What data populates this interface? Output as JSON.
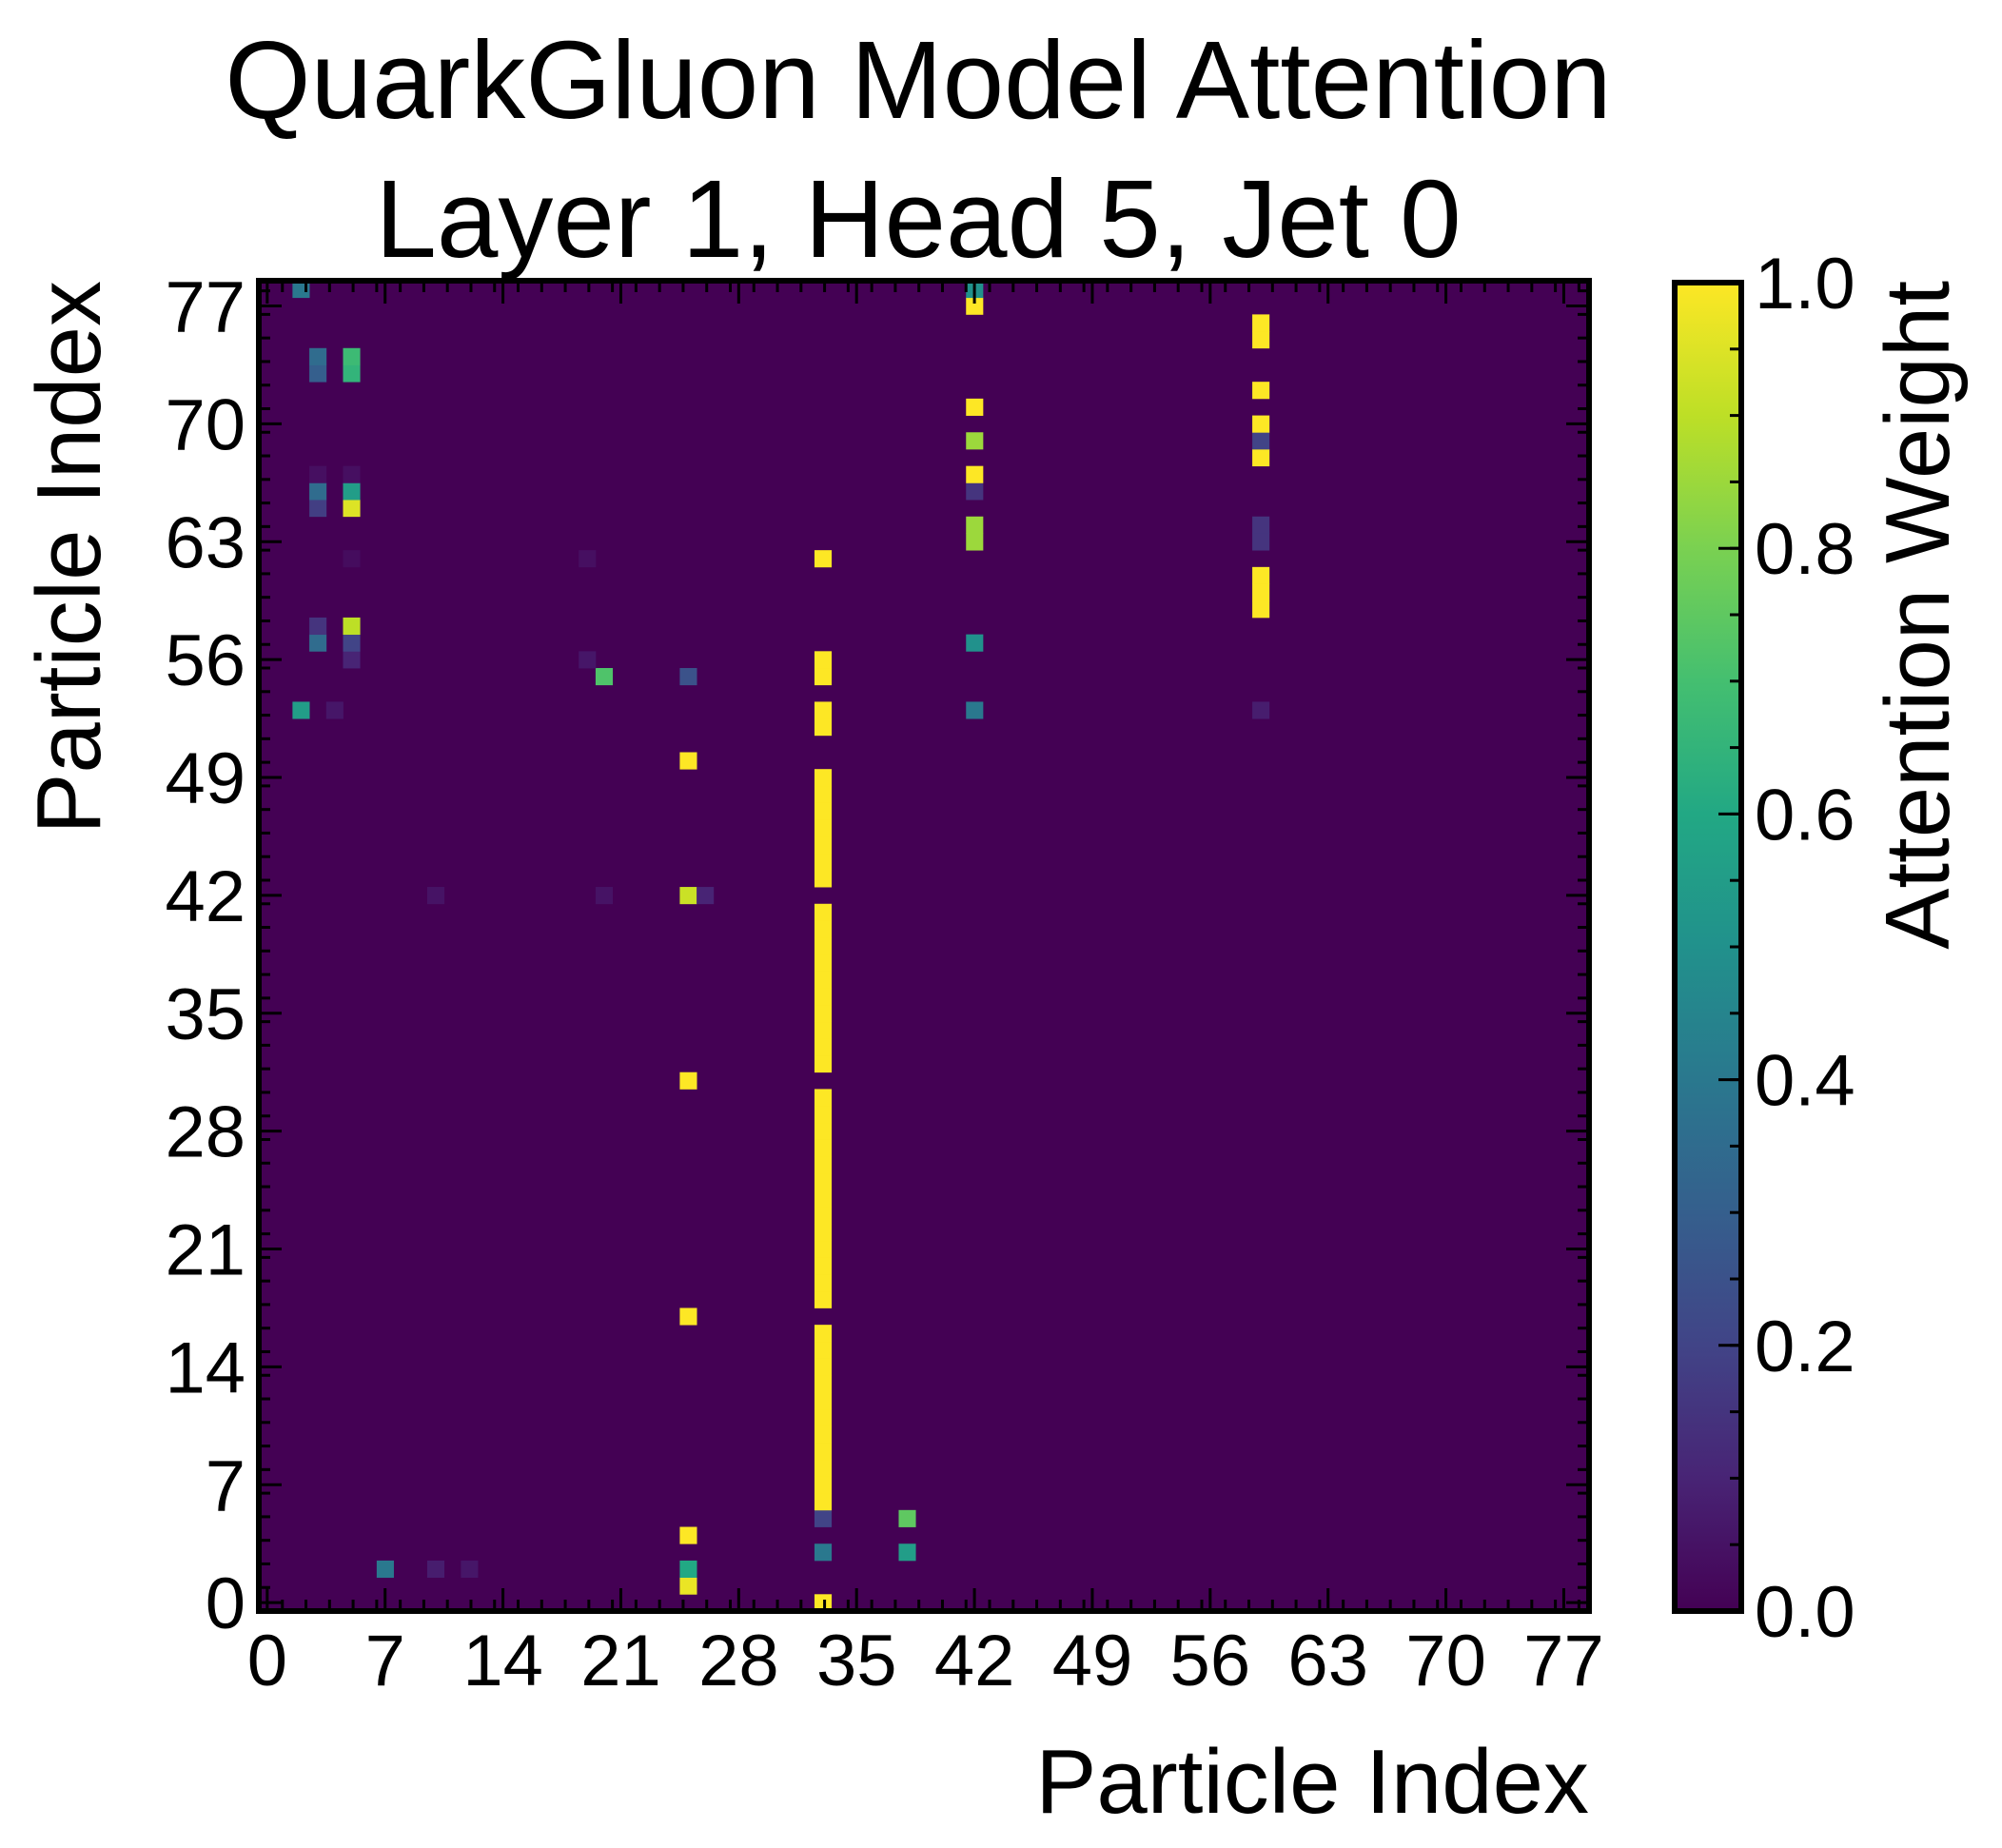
{
  "chart_data": {
    "type": "heatmap",
    "title": "QuarkGluon Model Attention",
    "subtitle": "Layer 1, Head 5, Jet 0",
    "xlabel": "Particle Index",
    "ylabel": "Particle Index",
    "x_ticks": [
      "0",
      "7",
      "14",
      "21",
      "28",
      "35",
      "42",
      "49",
      "56",
      "63",
      "70",
      "77"
    ],
    "y_ticks": [
      "0",
      "7",
      "14",
      "21",
      "28",
      "35",
      "42",
      "49",
      "56",
      "63",
      "70",
      "77"
    ],
    "xlim": [
      0,
      79
    ],
    "ylim": [
      0,
      79
    ],
    "colorbar": {
      "label": "Attention Weight",
      "ticks": [
        "0.0",
        "0.2",
        "0.4",
        "0.6",
        "0.8",
        "1.0"
      ],
      "range": [
        0,
        1
      ],
      "colormap": "viridis"
    },
    "background_value": 0.0,
    "cells": [
      {
        "x": 33,
        "y": 0,
        "v": 1.0
      },
      {
        "x": 25,
        "y": 1,
        "v": 0.97
      },
      {
        "x": 25,
        "y": 2,
        "v": 0.6
      },
      {
        "x": 7,
        "y": 2,
        "v": 0.4
      },
      {
        "x": 10,
        "y": 2,
        "v": 0.08
      },
      {
        "x": 12,
        "y": 2,
        "v": 0.06
      },
      {
        "x": 33,
        "y": 3,
        "v": 0.4
      },
      {
        "x": 38,
        "y": 3,
        "v": 0.55
      },
      {
        "x": 25,
        "y": 4,
        "v": 1.0
      },
      {
        "x": 33,
        "y": 5,
        "v": 0.2
      },
      {
        "x": 38,
        "y": 5,
        "v": 0.75
      },
      {
        "x": 33,
        "y": 6,
        "v": 1.0
      },
      {
        "x": 33,
        "y": 7,
        "v": 1.0
      },
      {
        "x": 33,
        "y": 8,
        "v": 1.0
      },
      {
        "x": 33,
        "y": 9,
        "v": 1.0
      },
      {
        "x": 33,
        "y": 10,
        "v": 1.0
      },
      {
        "x": 33,
        "y": 11,
        "v": 1.0
      },
      {
        "x": 33,
        "y": 12,
        "v": 1.0
      },
      {
        "x": 33,
        "y": 13,
        "v": 1.0
      },
      {
        "x": 33,
        "y": 14,
        "v": 1.0
      },
      {
        "x": 33,
        "y": 15,
        "v": 1.0
      },
      {
        "x": 33,
        "y": 16,
        "v": 1.0
      },
      {
        "x": 25,
        "y": 17,
        "v": 1.0
      },
      {
        "x": 33,
        "y": 18,
        "v": 1.0
      },
      {
        "x": 33,
        "y": 19,
        "v": 1.0
      },
      {
        "x": 33,
        "y": 20,
        "v": 1.0
      },
      {
        "x": 33,
        "y": 21,
        "v": 1.0
      },
      {
        "x": 33,
        "y": 22,
        "v": 1.0
      },
      {
        "x": 33,
        "y": 23,
        "v": 1.0
      },
      {
        "x": 33,
        "y": 24,
        "v": 1.0
      },
      {
        "x": 33,
        "y": 25,
        "v": 1.0
      },
      {
        "x": 33,
        "y": 26,
        "v": 1.0
      },
      {
        "x": 33,
        "y": 27,
        "v": 1.0
      },
      {
        "x": 33,
        "y": 28,
        "v": 1.0
      },
      {
        "x": 33,
        "y": 29,
        "v": 1.0
      },
      {
        "x": 33,
        "y": 30,
        "v": 1.0
      },
      {
        "x": 25,
        "y": 31,
        "v": 1.0
      },
      {
        "x": 33,
        "y": 32,
        "v": 1.0
      },
      {
        "x": 33,
        "y": 33,
        "v": 1.0
      },
      {
        "x": 33,
        "y": 34,
        "v": 1.0
      },
      {
        "x": 33,
        "y": 35,
        "v": 1.0
      },
      {
        "x": 33,
        "y": 36,
        "v": 1.0
      },
      {
        "x": 33,
        "y": 37,
        "v": 1.0
      },
      {
        "x": 33,
        "y": 38,
        "v": 1.0
      },
      {
        "x": 33,
        "y": 39,
        "v": 1.0
      },
      {
        "x": 33,
        "y": 40,
        "v": 1.0
      },
      {
        "x": 33,
        "y": 41,
        "v": 1.0
      },
      {
        "x": 25,
        "y": 42,
        "v": 0.92
      },
      {
        "x": 26,
        "y": 42,
        "v": 0.1
      },
      {
        "x": 10,
        "y": 42,
        "v": 0.05
      },
      {
        "x": 20,
        "y": 42,
        "v": 0.05
      },
      {
        "x": 33,
        "y": 43,
        "v": 1.0
      },
      {
        "x": 33,
        "y": 44,
        "v": 1.0
      },
      {
        "x": 33,
        "y": 45,
        "v": 1.0
      },
      {
        "x": 33,
        "y": 46,
        "v": 1.0
      },
      {
        "x": 33,
        "y": 47,
        "v": 1.0
      },
      {
        "x": 33,
        "y": 48,
        "v": 1.0
      },
      {
        "x": 33,
        "y": 49,
        "v": 1.0
      },
      {
        "x": 25,
        "y": 50,
        "v": 1.0
      },
      {
        "x": 33,
        "y": 52,
        "v": 1.0
      },
      {
        "x": 33,
        "y": 53,
        "v": 1.0
      },
      {
        "x": 2,
        "y": 53,
        "v": 0.55
      },
      {
        "x": 4,
        "y": 53,
        "v": 0.06
      },
      {
        "x": 42,
        "y": 53,
        "v": 0.4
      },
      {
        "x": 59,
        "y": 53,
        "v": 0.08
      },
      {
        "x": 33,
        "y": 55,
        "v": 1.0
      },
      {
        "x": 20,
        "y": 55,
        "v": 0.72
      },
      {
        "x": 25,
        "y": 55,
        "v": 0.25
      },
      {
        "x": 33,
        "y": 56,
        "v": 1.0
      },
      {
        "x": 19,
        "y": 56,
        "v": 0.06
      },
      {
        "x": 5,
        "y": 56,
        "v": 0.1
      },
      {
        "x": 3,
        "y": 57,
        "v": 0.35
      },
      {
        "x": 5,
        "y": 57,
        "v": 0.2
      },
      {
        "x": 42,
        "y": 57,
        "v": 0.5
      },
      {
        "x": 3,
        "y": 58,
        "v": 0.15
      },
      {
        "x": 5,
        "y": 58,
        "v": 0.9
      },
      {
        "x": 59,
        "y": 59,
        "v": 1.0
      },
      {
        "x": 59,
        "y": 60,
        "v": 1.0
      },
      {
        "x": 59,
        "y": 61,
        "v": 1.0
      },
      {
        "x": 33,
        "y": 62,
        "v": 1.0
      },
      {
        "x": 19,
        "y": 62,
        "v": 0.04
      },
      {
        "x": 5,
        "y": 62,
        "v": 0.03
      },
      {
        "x": 42,
        "y": 63,
        "v": 0.85
      },
      {
        "x": 42,
        "y": 64,
        "v": 0.85
      },
      {
        "x": 59,
        "y": 63,
        "v": 0.15
      },
      {
        "x": 59,
        "y": 64,
        "v": 0.15
      },
      {
        "x": 3,
        "y": 65,
        "v": 0.18
      },
      {
        "x": 5,
        "y": 65,
        "v": 0.95
      },
      {
        "x": 3,
        "y": 66,
        "v": 0.35
      },
      {
        "x": 5,
        "y": 66,
        "v": 0.55
      },
      {
        "x": 42,
        "y": 66,
        "v": 0.15
      },
      {
        "x": 42,
        "y": 67,
        "v": 1.0
      },
      {
        "x": 3,
        "y": 67,
        "v": 0.04
      },
      {
        "x": 5,
        "y": 67,
        "v": 0.04
      },
      {
        "x": 59,
        "y": 68,
        "v": 1.0
      },
      {
        "x": 42,
        "y": 69,
        "v": 0.85
      },
      {
        "x": 59,
        "y": 69,
        "v": 0.2
      },
      {
        "x": 59,
        "y": 70,
        "v": 1.0
      },
      {
        "x": 42,
        "y": 71,
        "v": 1.0
      },
      {
        "x": 59,
        "y": 72,
        "v": 1.0
      },
      {
        "x": 3,
        "y": 73,
        "v": 0.3
      },
      {
        "x": 5,
        "y": 73,
        "v": 0.65
      },
      {
        "x": 3,
        "y": 74,
        "v": 0.35
      },
      {
        "x": 5,
        "y": 74,
        "v": 0.68
      },
      {
        "x": 59,
        "y": 75,
        "v": 1.0
      },
      {
        "x": 59,
        "y": 76,
        "v": 1.0
      },
      {
        "x": 42,
        "y": 77,
        "v": 1.0
      },
      {
        "x": 42,
        "y": 78,
        "v": 0.5
      },
      {
        "x": 2,
        "y": 78,
        "v": 0.4
      }
    ]
  }
}
